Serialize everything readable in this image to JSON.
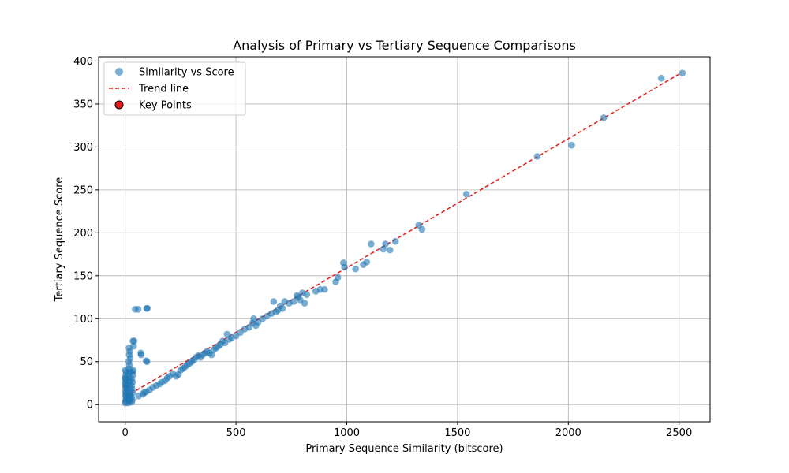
{
  "chart_data": {
    "type": "scatter",
    "title": "Analysis of Primary vs Tertiary Sequence Comparisons",
    "xlabel": "Primary Sequence Similarity (bitscore)",
    "ylabel": "Tertiary Sequence Score",
    "xlim": [
      -120,
      2640
    ],
    "ylim": [
      -20,
      405
    ],
    "xticks": [
      0,
      500,
      1000,
      1500,
      2000,
      2500
    ],
    "yticks": [
      0,
      50,
      100,
      150,
      200,
      250,
      300,
      350,
      400
    ],
    "grid": true,
    "legend_position": "top-left",
    "legend": [
      {
        "label": "Similarity vs Score",
        "kind": "marker"
      },
      {
        "label": "Trend line",
        "kind": "dashed-line"
      },
      {
        "label": "Key Points",
        "kind": "key-marker"
      }
    ],
    "colors": {
      "points": "#1f77b4",
      "trend": "#e41a1c",
      "key_fill": "#e41a1c",
      "key_edge": "#000000"
    },
    "trend": {
      "x": [
        0,
        2515
      ],
      "y": [
        9,
        387
      ]
    },
    "series": [
      {
        "name": "Similarity vs Score",
        "points": [
          [
            0,
            2
          ],
          [
            2,
            5
          ],
          [
            5,
            8
          ],
          [
            3,
            12
          ],
          [
            1,
            15
          ],
          [
            4,
            18
          ],
          [
            2,
            22
          ],
          [
            0,
            25
          ],
          [
            3,
            28
          ],
          [
            1,
            31
          ],
          [
            2,
            34
          ],
          [
            4,
            38
          ],
          [
            0,
            40
          ],
          [
            3,
            3
          ],
          [
            6,
            6
          ],
          [
            1,
            10
          ],
          [
            5,
            14
          ],
          [
            2,
            20
          ],
          [
            4,
            24
          ],
          [
            0,
            30
          ],
          [
            15,
            2
          ],
          [
            18,
            5
          ],
          [
            16,
            9
          ],
          [
            20,
            12
          ],
          [
            17,
            15
          ],
          [
            19,
            19
          ],
          [
            16,
            23
          ],
          [
            21,
            27
          ],
          [
            18,
            31
          ],
          [
            15,
            35
          ],
          [
            20,
            38
          ],
          [
            17,
            42
          ],
          [
            19,
            46
          ],
          [
            16,
            50
          ],
          [
            22,
            54
          ],
          [
            18,
            58
          ],
          [
            20,
            62
          ],
          [
            17,
            66
          ],
          [
            21,
            10
          ],
          [
            19,
            4
          ],
          [
            30,
            3
          ],
          [
            32,
            6
          ],
          [
            28,
            9
          ],
          [
            34,
            14
          ],
          [
            31,
            18
          ],
          [
            29,
            22
          ],
          [
            33,
            26
          ],
          [
            30,
            30
          ],
          [
            35,
            35
          ],
          [
            32,
            38
          ],
          [
            36,
            40
          ],
          [
            38,
            68
          ],
          [
            40,
            74
          ],
          [
            35,
            74
          ],
          [
            45,
            111
          ],
          [
            58,
            111
          ],
          [
            97,
            112
          ],
          [
            100,
            112
          ],
          [
            70,
            60
          ],
          [
            72,
            58
          ],
          [
            95,
            51
          ],
          [
            98,
            50
          ],
          [
            60,
            10
          ],
          [
            80,
            12
          ],
          [
            85,
            14
          ],
          [
            95,
            15
          ],
          [
            110,
            17
          ],
          [
            125,
            20
          ],
          [
            140,
            22
          ],
          [
            155,
            24
          ],
          [
            165,
            26
          ],
          [
            180,
            28
          ],
          [
            190,
            31
          ],
          [
            200,
            33
          ],
          [
            215,
            36
          ],
          [
            230,
            33
          ],
          [
            240,
            35
          ],
          [
            250,
            40
          ],
          [
            260,
            42
          ],
          [
            270,
            44
          ],
          [
            280,
            46
          ],
          [
            290,
            48
          ],
          [
            300,
            50
          ],
          [
            310,
            52
          ],
          [
            320,
            55
          ],
          [
            330,
            57
          ],
          [
            340,
            55
          ],
          [
            350,
            58
          ],
          [
            360,
            60
          ],
          [
            370,
            62
          ],
          [
            380,
            60
          ],
          [
            390,
            58
          ],
          [
            400,
            64
          ],
          [
            410,
            66
          ],
          [
            420,
            68
          ],
          [
            430,
            70
          ],
          [
            440,
            74
          ],
          [
            450,
            72
          ],
          [
            460,
            82
          ],
          [
            470,
            76
          ],
          [
            480,
            78
          ],
          [
            500,
            80
          ],
          [
            520,
            84
          ],
          [
            540,
            88
          ],
          [
            560,
            90
          ],
          [
            575,
            95
          ],
          [
            580,
            100
          ],
          [
            590,
            92
          ],
          [
            600,
            96
          ],
          [
            620,
            100
          ],
          [
            640,
            103
          ],
          [
            660,
            106
          ],
          [
            670,
            120
          ],
          [
            680,
            108
          ],
          [
            690,
            110
          ],
          [
            700,
            115
          ],
          [
            710,
            112
          ],
          [
            720,
            120
          ],
          [
            740,
            118
          ],
          [
            760,
            120
          ],
          [
            775,
            127
          ],
          [
            780,
            125
          ],
          [
            790,
            122
          ],
          [
            800,
            130
          ],
          [
            810,
            118
          ],
          [
            820,
            128
          ],
          [
            860,
            132
          ],
          [
            880,
            134
          ],
          [
            900,
            134
          ],
          [
            950,
            143
          ],
          [
            960,
            148
          ],
          [
            985,
            165
          ],
          [
            990,
            160
          ],
          [
            1040,
            158
          ],
          [
            1075,
            163
          ],
          [
            1090,
            166
          ],
          [
            1110,
            187
          ],
          [
            1165,
            181
          ],
          [
            1175,
            187
          ],
          [
            1195,
            180
          ],
          [
            1220,
            190
          ],
          [
            1325,
            209
          ],
          [
            1340,
            204
          ],
          [
            1540,
            245
          ],
          [
            1860,
            289
          ],
          [
            2015,
            302
          ],
          [
            2160,
            334
          ],
          [
            2420,
            380
          ],
          [
            2515,
            386
          ]
        ]
      }
    ]
  }
}
